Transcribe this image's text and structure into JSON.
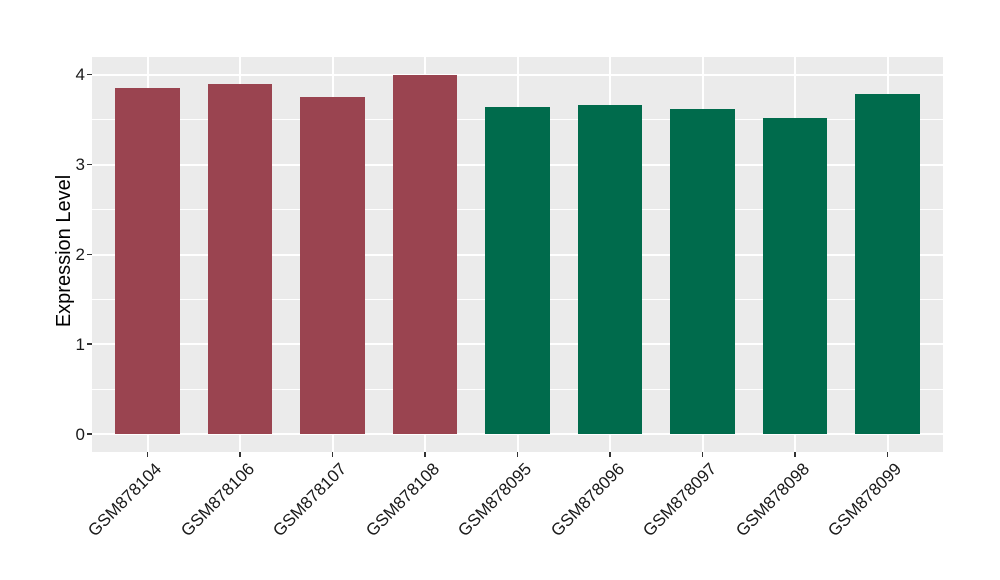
{
  "chart_data": {
    "type": "bar",
    "title": "",
    "xlabel": "",
    "ylabel": "Expression Level",
    "categories": [
      "GSM878104",
      "GSM878106",
      "GSM878107",
      "GSM878108",
      "GSM878095",
      "GSM878096",
      "GSM878097",
      "GSM878098",
      "GSM878099"
    ],
    "values": [
      3.85,
      3.9,
      3.75,
      4.0,
      3.64,
      3.66,
      3.62,
      3.52,
      3.79
    ],
    "bar_colors": [
      "#9A4450",
      "#9A4450",
      "#9A4450",
      "#9A4450",
      "#006B4C",
      "#006B4C",
      "#006B4C",
      "#006B4C",
      "#006B4C"
    ],
    "y_ticks": [
      0,
      1,
      2,
      3,
      4
    ],
    "ylim": [
      -0.2,
      4.2
    ],
    "legend_position": "none",
    "grid": {
      "horizontal_major": [
        0,
        1,
        2,
        3,
        4
      ],
      "horizontal_minor": [
        0.5,
        1.5,
        2.5,
        3.5
      ],
      "vertical_major": "at bar centers"
    },
    "style": {
      "panel_background": "#EBEBEB",
      "gridline_color": "#FFFFFF",
      "tick_color": "#333333",
      "text_color": "#1A1A1A",
      "group1_color": "#9A4450",
      "group2_color": "#006B4C"
    }
  }
}
